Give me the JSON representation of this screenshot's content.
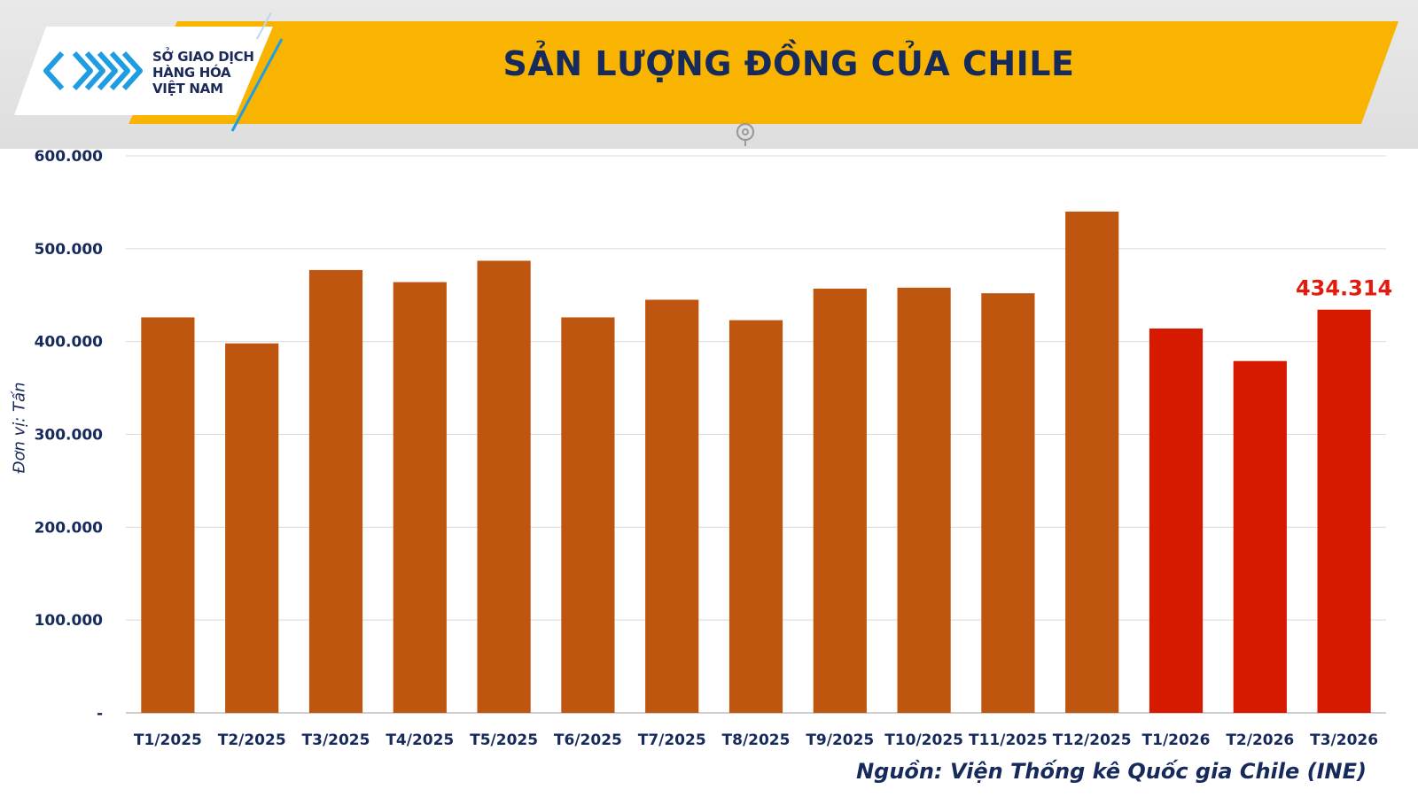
{
  "header": {
    "logo_lines": [
      "SỞ GIAO DỊCH",
      "HÀNG HÓA",
      "VIỆT NAM"
    ],
    "logo_icon": "mxv-chevron-logo",
    "title": "SẢN LƯỢNG ĐỒNG CỦA CHILE"
  },
  "colors": {
    "banner": "#f8b400",
    "bar_2025": "#bf5610",
    "bar_2026": "#d51a00",
    "highlight_label": "#e31b0f",
    "text_dark": "#172a5c"
  },
  "chart_data": {
    "type": "bar",
    "title": "SẢN LƯỢNG ĐỒNG CỦA CHILE",
    "ylabel": "Đơn vị: Tấn",
    "xlabel": "",
    "ylim": [
      0,
      600000
    ],
    "yticks": [
      0,
      100000,
      200000,
      300000,
      400000,
      500000,
      600000
    ],
    "ytick_labels": [
      "-",
      "100.000",
      "200.000",
      "300.000",
      "400.000",
      "500.000",
      "600.000"
    ],
    "grid": true,
    "categories": [
      "T1/2025",
      "T2/2025",
      "T3/2025",
      "T4/2025",
      "T5/2025",
      "T6/2025",
      "T7/2025",
      "T8/2025",
      "T9/2025",
      "T10/2025",
      "T11/2025",
      "T12/2025",
      "T1/2026",
      "T2/2026",
      "T3/2026"
    ],
    "values": [
      426000,
      398000,
      477000,
      464000,
      487000,
      426000,
      445000,
      423000,
      457000,
      458000,
      452000,
      540000,
      414000,
      379000,
      434314
    ],
    "highlighted_categories": [
      "T1/2026",
      "T2/2026",
      "T3/2026"
    ],
    "data_labels": [
      {
        "category": "T3/2026",
        "text": "434.314"
      }
    ]
  },
  "source": "Nguồn: Viện Thống kê Quốc gia Chile (INE)"
}
